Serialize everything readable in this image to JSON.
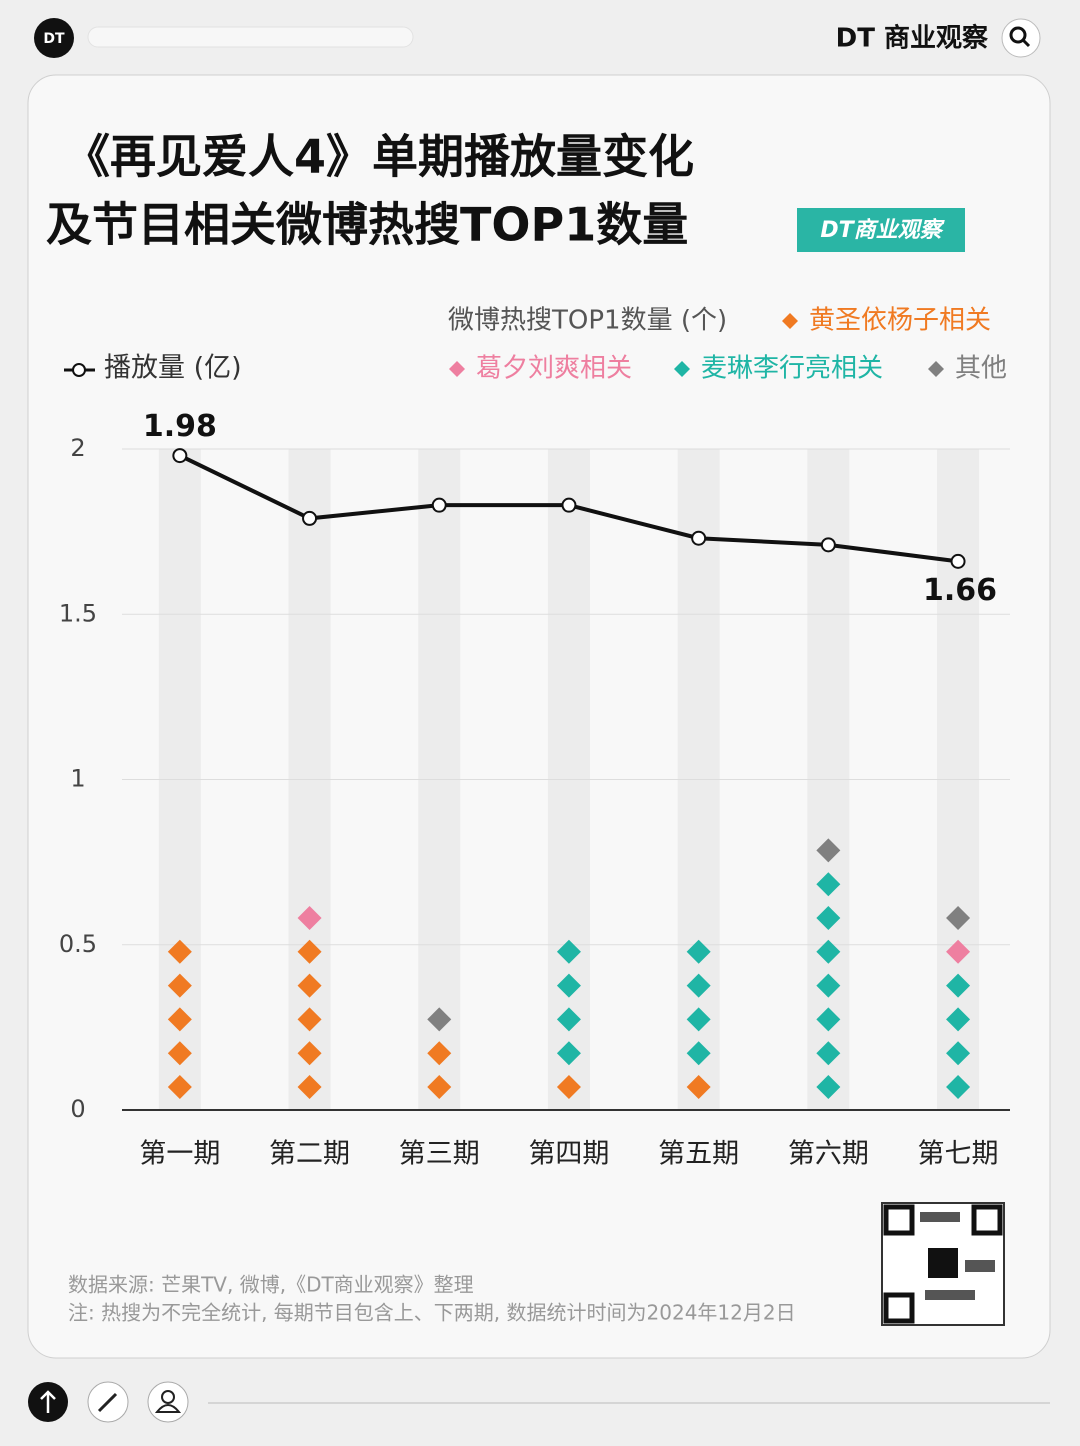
{
  "header": {
    "brand": "DT 商业观察",
    "badge": "DT商业观察"
  },
  "chart_data": {
    "type": "line",
    "title": [
      "《再见爱人4》单期播放量变化",
      "及节目相关微博热搜TOP1数量"
    ],
    "categories": [
      "第一期",
      "第二期",
      "第三期",
      "第四期",
      "第五期",
      "第六期",
      "第七期"
    ],
    "series": [
      {
        "name": "播放量 (亿)",
        "color": "#111111",
        "values": [
          1.98,
          1.79,
          1.83,
          1.83,
          1.73,
          1.71,
          1.66
        ]
      }
    ],
    "show_labels": "ends",
    "ylim": [
      0,
      2
    ],
    "yticks": [
      0,
      0.5,
      1,
      1.5,
      2
    ],
    "grid": true,
    "counts": {
      "type": "dot-stack",
      "title": "微博热搜TOP1数量 (个)",
      "series": [
        {
          "name": "黄圣依杨子相关",
          "color": "#f07a22",
          "values": [
            5,
            5,
            2,
            1,
            1,
            0,
            0
          ]
        },
        {
          "name": "麦琳李行亮相关",
          "color": "#1fb5a5",
          "values": [
            0,
            0,
            0,
            4,
            4,
            7,
            4
          ]
        },
        {
          "name": "葛夕刘爽相关",
          "color": "#ee7fa0",
          "values": [
            0,
            1,
            0,
            0,
            0,
            0,
            1
          ]
        },
        {
          "name": "其他",
          "color": "#808080",
          "values": [
            0,
            0,
            1,
            0,
            0,
            1,
            1
          ]
        }
      ]
    }
  },
  "footer": {
    "source": "数据来源: 芒果TV, 微博,《DT商业观察》整理",
    "note": "注: 热搜为不完全统计, 每期节目包含上、下两期, 数据统计时间为2024年12月2日"
  }
}
